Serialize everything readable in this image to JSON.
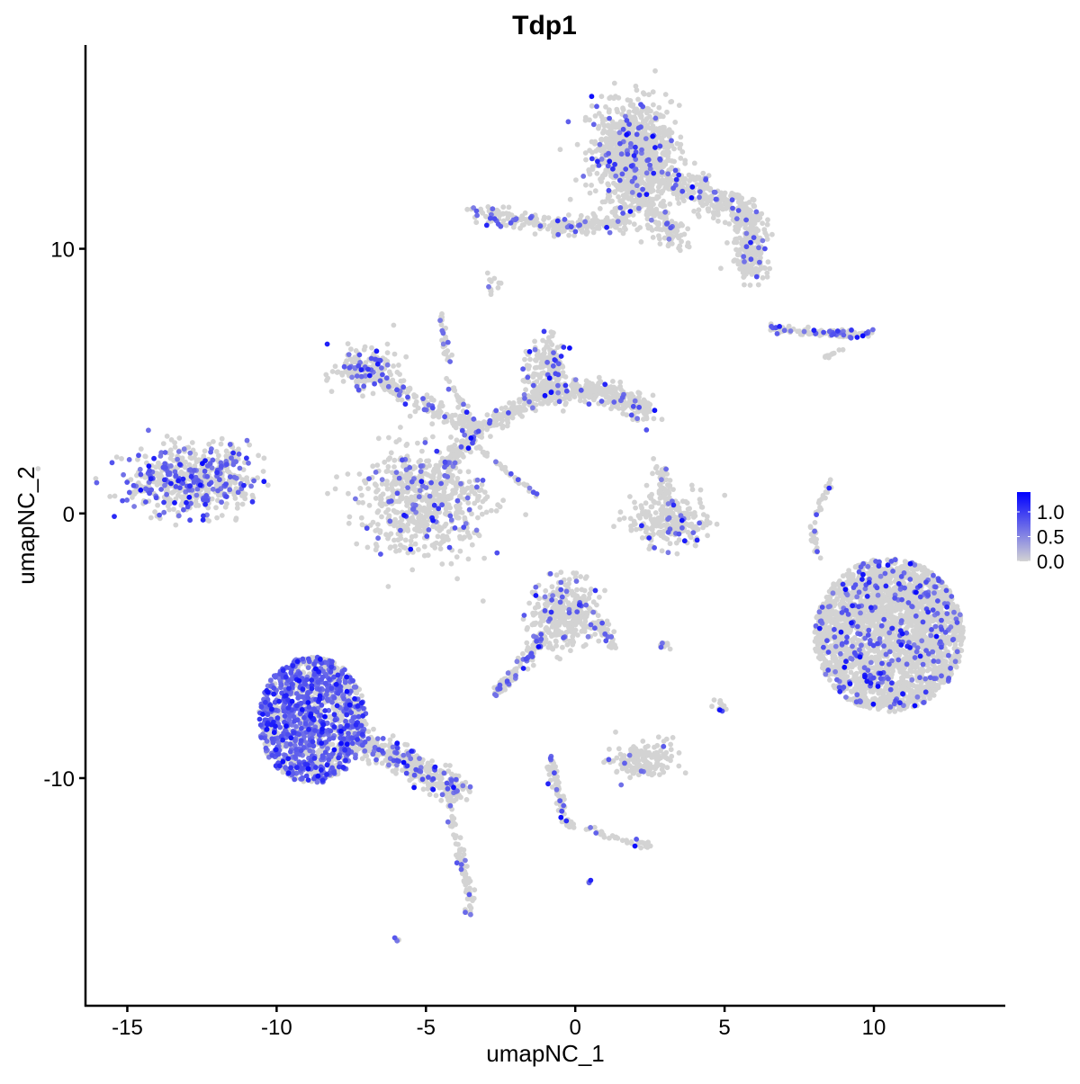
{
  "chart_data": {
    "type": "scatter",
    "title": "Tdp1",
    "xlabel": "umapNC_1",
    "ylabel": "umapNC_2",
    "xlim": [
      -16.4,
      14.4
    ],
    "ylim": [
      -18.6,
      17.7
    ],
    "x_ticks": [
      -15,
      -10,
      -5,
      0,
      5,
      10
    ],
    "x_tick_labels": [
      "-15",
      "-10",
      "-5",
      "0",
      "5",
      "10"
    ],
    "y_ticks": [
      -10,
      0,
      10
    ],
    "y_tick_labels": [
      "-10",
      "0",
      "10"
    ],
    "grid": false,
    "color_scale": {
      "low": "#D3D3D3",
      "high": "#0000FF",
      "min": 0,
      "max": 1.4,
      "ticks": [
        0,
        0.5,
        1.0
      ],
      "tick_labels": [
        "0.0",
        "0.5",
        "1.0"
      ],
      "legend_placement": "right"
    },
    "clusters": [
      {
        "kind": "blob",
        "center": [
          1.9,
          13.6
        ],
        "spread": [
          0.8,
          1.2
        ],
        "n": 900,
        "expressed_fraction": 0.08
      },
      {
        "kind": "line",
        "path": [
          [
            3.0,
            12.6
          ],
          [
            5.8,
            11.3
          ],
          [
            5.9,
            9.0
          ]
        ],
        "width": 0.6,
        "n": 500,
        "expressed_fraction": 0.06
      },
      {
        "kind": "line",
        "path": [
          [
            -3.4,
            11.4
          ],
          [
            -0.5,
            10.8
          ],
          [
            1.9,
            11.1
          ]
        ],
        "width": 0.35,
        "n": 250,
        "expressed_fraction": 0.1
      },
      {
        "kind": "line",
        "path": [
          [
            1.8,
            12.5
          ],
          [
            3.5,
            10.3
          ]
        ],
        "width": 0.5,
        "n": 200,
        "expressed_fraction": 0.06
      },
      {
        "kind": "blob",
        "center": [
          -2.8,
          8.7
        ],
        "spread": [
          0.15,
          0.3
        ],
        "n": 12,
        "expressed_fraction": 0.1
      },
      {
        "kind": "line",
        "path": [
          [
            6.5,
            7.0
          ],
          [
            8.5,
            6.8
          ],
          [
            10.0,
            6.8
          ]
        ],
        "width": 0.15,
        "n": 120,
        "expressed_fraction": 0.25
      },
      {
        "kind": "line",
        "path": [
          [
            8.3,
            5.8
          ],
          [
            8.9,
            6.2
          ]
        ],
        "width": 0.1,
        "n": 12,
        "expressed_fraction": 0
      },
      {
        "kind": "blob",
        "center": [
          -7.0,
          5.4
        ],
        "spread": [
          0.6,
          0.5
        ],
        "n": 180,
        "expressed_fraction": 0.18
      },
      {
        "kind": "line",
        "path": [
          [
            -6.5,
            5.0
          ],
          [
            -3.3,
            3.1
          ],
          [
            -1.0,
            4.6
          ]
        ],
        "width": 0.35,
        "n": 300,
        "expressed_fraction": 0.12
      },
      {
        "kind": "blob",
        "center": [
          -1.0,
          5.5
        ],
        "spread": [
          0.4,
          0.7
        ],
        "n": 180,
        "expressed_fraction": 0.15
      },
      {
        "kind": "line",
        "path": [
          [
            -1.1,
            4.6
          ],
          [
            1.0,
            4.6
          ],
          [
            2.6,
            3.8
          ]
        ],
        "width": 0.45,
        "n": 350,
        "expressed_fraction": 0.06
      },
      {
        "kind": "blob",
        "center": [
          -5.1,
          0.5
        ],
        "spread": [
          1.3,
          1.2
        ],
        "n": 650,
        "expressed_fraction": 0.12
      },
      {
        "kind": "line",
        "path": [
          [
            -4.5,
            7.6
          ],
          [
            -4.2,
            5.0
          ],
          [
            -3.3,
            3.1
          ]
        ],
        "width": 0.12,
        "n": 60,
        "expressed_fraction": 0.1
      },
      {
        "kind": "line",
        "path": [
          [
            -3.3,
            3.1
          ],
          [
            -4.3,
            1.8
          ]
        ],
        "width": 0.3,
        "n": 100,
        "expressed_fraction": 0.1
      },
      {
        "kind": "line",
        "path": [
          [
            -3.3,
            2.5
          ],
          [
            -1.3,
            0.7
          ]
        ],
        "width": 0.08,
        "n": 40,
        "expressed_fraction": 0.1
      },
      {
        "kind": "blob",
        "center": [
          -13.0,
          1.2
        ],
        "spread": [
          1.3,
          0.8
        ],
        "n": 550,
        "expressed_fraction": 0.28
      },
      {
        "kind": "line",
        "path": [
          [
            -12.0,
            1.3
          ],
          [
            -11.3,
            2.6
          ]
        ],
        "width": 0.2,
        "n": 40,
        "expressed_fraction": 0.2
      },
      {
        "kind": "blob",
        "center": [
          3.2,
          -0.3
        ],
        "spread": [
          0.9,
          0.6
        ],
        "n": 260,
        "expressed_fraction": 0.06
      },
      {
        "kind": "line",
        "path": [
          [
            2.9,
            1.8
          ],
          [
            3.2,
            0.3
          ]
        ],
        "width": 0.3,
        "n": 40,
        "expressed_fraction": 0.05
      },
      {
        "kind": "line",
        "path": [
          [
            8.5,
            1.2
          ],
          [
            7.9,
            -0.5
          ],
          [
            8.1,
            -1.7
          ]
        ],
        "width": 0.1,
        "n": 40,
        "expressed_fraction": 0.1
      },
      {
        "kind": "disk",
        "center": [
          10.5,
          -4.6
        ],
        "spread": [
          2.5,
          2.9
        ],
        "n": 2600,
        "expressed_fraction": 0.1
      },
      {
        "kind": "disk",
        "center": [
          -8.8,
          -7.8
        ],
        "spread": [
          1.8,
          2.4
        ],
        "n": 1300,
        "expressed_fraction": 0.55
      },
      {
        "kind": "line",
        "path": [
          [
            -7.5,
            -8.5
          ],
          [
            -5.5,
            -9.5
          ],
          [
            -3.9,
            -10.5
          ]
        ],
        "width": 0.5,
        "n": 350,
        "expressed_fraction": 0.2
      },
      {
        "kind": "line",
        "path": [
          [
            -4.2,
            -10.7
          ],
          [
            -4.0,
            -12.5
          ],
          [
            -3.6,
            -14.0
          ],
          [
            -3.5,
            -15.2
          ]
        ],
        "width": 0.15,
        "n": 90,
        "expressed_fraction": 0.15
      },
      {
        "kind": "blob",
        "center": [
          -6.0,
          -16.1
        ],
        "spread": [
          0.08,
          0.05
        ],
        "n": 5,
        "expressed_fraction": 0.6
      },
      {
        "kind": "blob",
        "center": [
          -0.4,
          -3.8
        ],
        "spread": [
          0.7,
          0.8
        ],
        "n": 350,
        "expressed_fraction": 0.1
      },
      {
        "kind": "line",
        "path": [
          [
            -1.0,
            -4.5
          ],
          [
            -2.0,
            -6.0
          ],
          [
            -2.7,
            -6.8
          ]
        ],
        "width": 0.2,
        "n": 110,
        "expressed_fraction": 0.2
      },
      {
        "kind": "line",
        "path": [
          [
            0.8,
            -4.0
          ],
          [
            1.3,
            -5.0
          ]
        ],
        "width": 0.2,
        "n": 40,
        "expressed_fraction": 0.1
      },
      {
        "kind": "blob",
        "center": [
          4.9,
          -7.3
        ],
        "spread": [
          0.15,
          0.2
        ],
        "n": 20,
        "expressed_fraction": 0.2
      },
      {
        "kind": "blob",
        "center": [
          2.9,
          -5.0
        ],
        "spread": [
          0.3,
          0.08
        ],
        "n": 12,
        "expressed_fraction": 0.1
      },
      {
        "kind": "blob",
        "center": [
          2.3,
          -9.4
        ],
        "spread": [
          0.6,
          0.4
        ],
        "n": 160,
        "expressed_fraction": 0.05
      },
      {
        "kind": "line",
        "path": [
          [
            -0.85,
            -9.2
          ],
          [
            -0.3,
            -11.7
          ],
          [
            2.5,
            -12.6
          ]
        ],
        "width": 0.15,
        "n": 110,
        "expressed_fraction": 0.1
      },
      {
        "kind": "blob",
        "center": [
          0.5,
          -13.9
        ],
        "spread": [
          0.06,
          0.06
        ],
        "n": 4,
        "expressed_fraction": 0.5
      }
    ]
  }
}
